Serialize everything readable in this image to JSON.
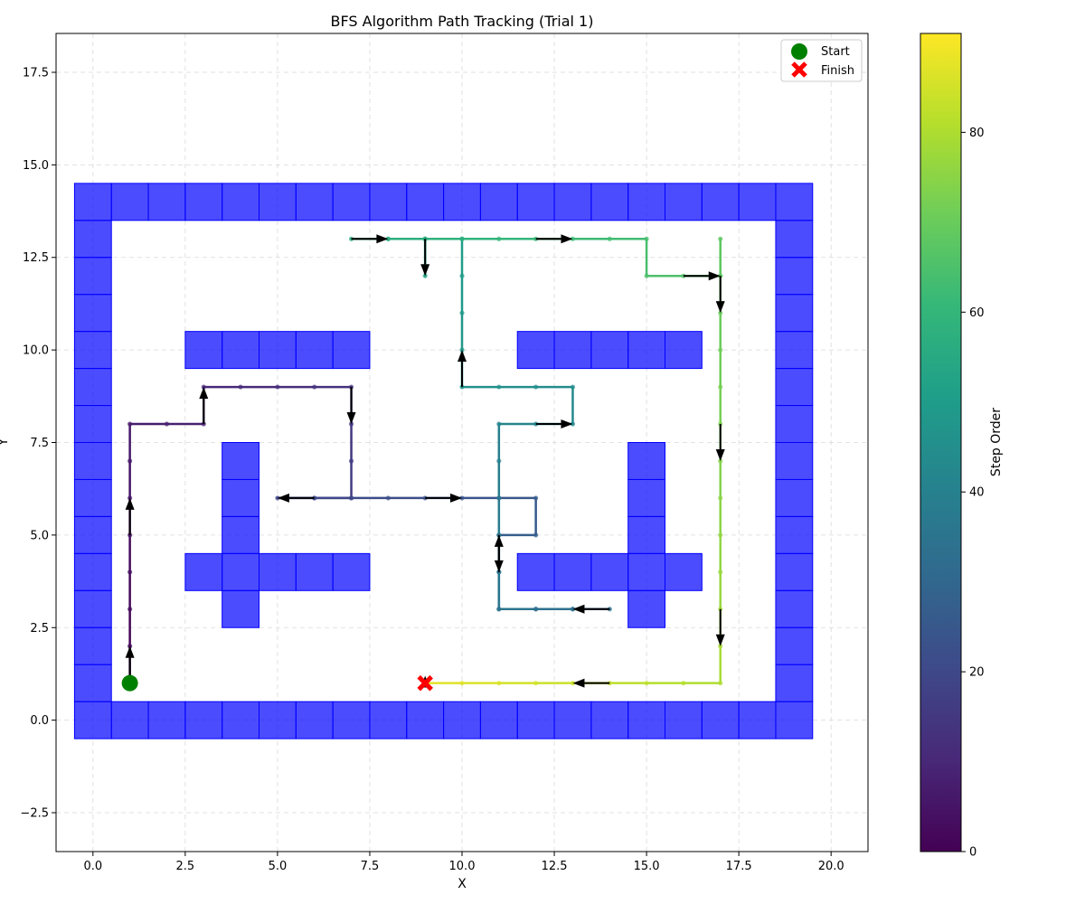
{
  "chart_data": {
    "type": "line",
    "title": "BFS Algorithm Path Tracking (Trial 1)",
    "xlabel": "X",
    "ylabel": "Y",
    "xlim": [
      -1.0,
      21.0
    ],
    "ylim": [
      -3.55,
      18.55
    ],
    "x_ticks": [
      0,
      2.5,
      5,
      7.5,
      10,
      12.5,
      15,
      17.5,
      20
    ],
    "x_tick_labels": [
      "0.0",
      "2.5",
      "5.0",
      "7.5",
      "10.0",
      "12.5",
      "15.0",
      "17.5",
      "20.0"
    ],
    "y_ticks": [
      -2.5,
      0,
      2.5,
      5,
      7.5,
      10,
      12.5,
      15,
      17.5
    ],
    "y_tick_labels": [
      "−2.5",
      "0.0",
      "2.5",
      "5.0",
      "7.5",
      "10.0",
      "12.5",
      "15.0",
      "17.5"
    ],
    "grid": true,
    "legend_position": "top-right",
    "legend": [
      {
        "label": "Start",
        "marker": "circle",
        "color": "#008000"
      },
      {
        "label": "Finish",
        "marker": "x",
        "color": "#ff0000"
      }
    ],
    "colorbar": {
      "label": "Step Order",
      "colormap": "viridis",
      "range": [
        0,
        91
      ],
      "ticks": [
        0,
        20,
        40,
        60,
        80
      ],
      "tick_labels": [
        "0",
        "20",
        "40",
        "60",
        "80"
      ]
    },
    "obstacle_color": "#0000ff",
    "obstacles": [
      [
        0,
        0
      ],
      [
        1,
        0
      ],
      [
        2,
        0
      ],
      [
        3,
        0
      ],
      [
        4,
        0
      ],
      [
        5,
        0
      ],
      [
        6,
        0
      ],
      [
        7,
        0
      ],
      [
        8,
        0
      ],
      [
        9,
        0
      ],
      [
        10,
        0
      ],
      [
        11,
        0
      ],
      [
        12,
        0
      ],
      [
        13,
        0
      ],
      [
        14,
        0
      ],
      [
        15,
        0
      ],
      [
        16,
        0
      ],
      [
        17,
        0
      ],
      [
        18,
        0
      ],
      [
        19,
        0
      ],
      [
        0,
        14
      ],
      [
        1,
        14
      ],
      [
        2,
        14
      ],
      [
        3,
        14
      ],
      [
        4,
        14
      ],
      [
        5,
        14
      ],
      [
        6,
        14
      ],
      [
        7,
        14
      ],
      [
        8,
        14
      ],
      [
        9,
        14
      ],
      [
        10,
        14
      ],
      [
        11,
        14
      ],
      [
        12,
        14
      ],
      [
        13,
        14
      ],
      [
        14,
        14
      ],
      [
        15,
        14
      ],
      [
        16,
        14
      ],
      [
        17,
        14
      ],
      [
        18,
        14
      ],
      [
        19,
        14
      ],
      [
        0,
        1
      ],
      [
        0,
        2
      ],
      [
        0,
        3
      ],
      [
        0,
        4
      ],
      [
        0,
        5
      ],
      [
        0,
        6
      ],
      [
        0,
        7
      ],
      [
        0,
        8
      ],
      [
        0,
        9
      ],
      [
        0,
        10
      ],
      [
        0,
        11
      ],
      [
        0,
        12
      ],
      [
        0,
        13
      ],
      [
        19,
        1
      ],
      [
        19,
        2
      ],
      [
        19,
        3
      ],
      [
        19,
        4
      ],
      [
        19,
        5
      ],
      [
        19,
        6
      ],
      [
        19,
        7
      ],
      [
        19,
        8
      ],
      [
        19,
        9
      ],
      [
        19,
        10
      ],
      [
        19,
        11
      ],
      [
        19,
        12
      ],
      [
        19,
        13
      ],
      [
        3,
        10
      ],
      [
        4,
        10
      ],
      [
        5,
        10
      ],
      [
        6,
        10
      ],
      [
        7,
        10
      ],
      [
        12,
        10
      ],
      [
        13,
        10
      ],
      [
        14,
        10
      ],
      [
        15,
        10
      ],
      [
        16,
        10
      ],
      [
        4,
        3
      ],
      [
        4,
        5
      ],
      [
        4,
        6
      ],
      [
        4,
        7
      ],
      [
        3,
        4
      ],
      [
        4,
        4
      ],
      [
        5,
        4
      ],
      [
        6,
        4
      ],
      [
        7,
        4
      ],
      [
        15,
        3
      ],
      [
        15,
        5
      ],
      [
        15,
        6
      ],
      [
        15,
        7
      ],
      [
        12,
        4
      ],
      [
        13,
        4
      ],
      [
        14,
        4
      ],
      [
        15,
        4
      ],
      [
        16,
        4
      ]
    ],
    "path": [
      [
        1,
        1
      ],
      [
        1,
        2
      ],
      [
        1,
        3
      ],
      [
        1,
        4
      ],
      [
        1,
        5
      ],
      [
        1,
        6
      ],
      [
        1,
        7
      ],
      [
        1,
        8
      ],
      [
        2,
        8
      ],
      [
        3,
        8
      ],
      [
        3,
        9
      ],
      [
        4,
        9
      ],
      [
        5,
        9
      ],
      [
        6,
        9
      ],
      [
        7,
        9
      ],
      [
        7,
        8
      ],
      [
        7,
        7
      ],
      [
        7,
        6
      ],
      [
        6,
        6
      ],
      [
        5,
        6
      ],
      [
        6,
        6
      ],
      [
        7,
        6
      ],
      [
        8,
        6
      ],
      [
        9,
        6
      ],
      [
        10,
        6
      ],
      [
        11,
        6
      ],
      [
        12,
        6
      ],
      [
        12,
        5
      ],
      [
        11,
        5
      ],
      [
        11,
        4
      ],
      [
        11,
        3
      ],
      [
        12,
        3
      ],
      [
        13,
        3
      ],
      [
        14,
        3
      ],
      [
        13,
        3
      ],
      [
        12,
        3
      ],
      [
        11,
        3
      ],
      [
        11,
        4
      ],
      [
        11,
        5
      ],
      [
        11,
        6
      ],
      [
        11,
        7
      ],
      [
        11,
        8
      ],
      [
        12,
        8
      ],
      [
        13,
        8
      ],
      [
        13,
        9
      ],
      [
        12,
        9
      ],
      [
        11,
        9
      ],
      [
        10,
        9
      ],
      [
        10,
        10
      ],
      [
        10,
        11
      ],
      [
        10,
        12
      ],
      [
        10,
        13
      ],
      [
        9,
        13
      ],
      [
        9,
        12
      ],
      [
        9,
        13
      ],
      [
        8,
        13
      ],
      [
        7,
        13
      ],
      [
        8,
        13
      ],
      [
        9,
        13
      ],
      [
        10,
        13
      ],
      [
        11,
        13
      ],
      [
        12,
        13
      ],
      [
        13,
        13
      ],
      [
        14,
        13
      ],
      [
        15,
        13
      ],
      [
        15,
        12
      ],
      [
        16,
        12
      ],
      [
        17,
        12
      ],
      [
        17,
        13
      ],
      [
        17,
        12
      ],
      [
        17,
        11
      ],
      [
        17,
        10
      ],
      [
        17,
        9
      ],
      [
        17,
        8
      ],
      [
        17,
        7
      ],
      [
        17,
        6
      ],
      [
        17,
        5
      ],
      [
        17,
        4
      ],
      [
        17,
        3
      ],
      [
        17,
        2
      ],
      [
        17,
        1
      ],
      [
        16,
        1
      ],
      [
        15,
        1
      ],
      [
        14,
        1
      ],
      [
        13,
        1
      ],
      [
        12,
        1
      ],
      [
        11,
        1
      ],
      [
        10,
        1
      ],
      [
        9,
        1
      ]
    ],
    "arrows": [
      {
        "from": [
          1,
          1
        ],
        "to": [
          1,
          2
        ]
      },
      {
        "from": [
          1,
          5
        ],
        "to": [
          1,
          6
        ]
      },
      {
        "from": [
          3,
          8
        ],
        "to": [
          3,
          9
        ]
      },
      {
        "from": [
          7,
          9
        ],
        "to": [
          7,
          8
        ]
      },
      {
        "from": [
          6,
          6
        ],
        "to": [
          5,
          6
        ]
      },
      {
        "from": [
          9,
          6
        ],
        "to": [
          10,
          6
        ]
      },
      {
        "from": [
          11,
          5
        ],
        "to": [
          11,
          4
        ]
      },
      {
        "from": [
          14,
          3
        ],
        "to": [
          13,
          3
        ]
      },
      {
        "from": [
          11,
          4
        ],
        "to": [
          11,
          5
        ]
      },
      {
        "from": [
          12,
          8
        ],
        "to": [
          13,
          8
        ]
      },
      {
        "from": [
          10,
          9
        ],
        "to": [
          10,
          10
        ]
      },
      {
        "from": [
          9,
          13
        ],
        "to": [
          9,
          12
        ]
      },
      {
        "from": [
          7,
          13
        ],
        "to": [
          8,
          13
        ]
      },
      {
        "from": [
          12,
          13
        ],
        "to": [
          13,
          13
        ]
      },
      {
        "from": [
          16,
          12
        ],
        "to": [
          17,
          12
        ]
      },
      {
        "from": [
          17,
          12
        ],
        "to": [
          17,
          11
        ]
      },
      {
        "from": [
          17,
          8
        ],
        "to": [
          17,
          7
        ]
      },
      {
        "from": [
          17,
          3
        ],
        "to": [
          17,
          2
        ]
      },
      {
        "from": [
          14,
          1
        ],
        "to": [
          13,
          1
        ]
      },
      {
        "from": [
          9,
          1
        ],
        "to": [
          9,
          1.2
        ]
      }
    ],
    "start": [
      1,
      1
    ],
    "finish": [
      9,
      1
    ]
  }
}
